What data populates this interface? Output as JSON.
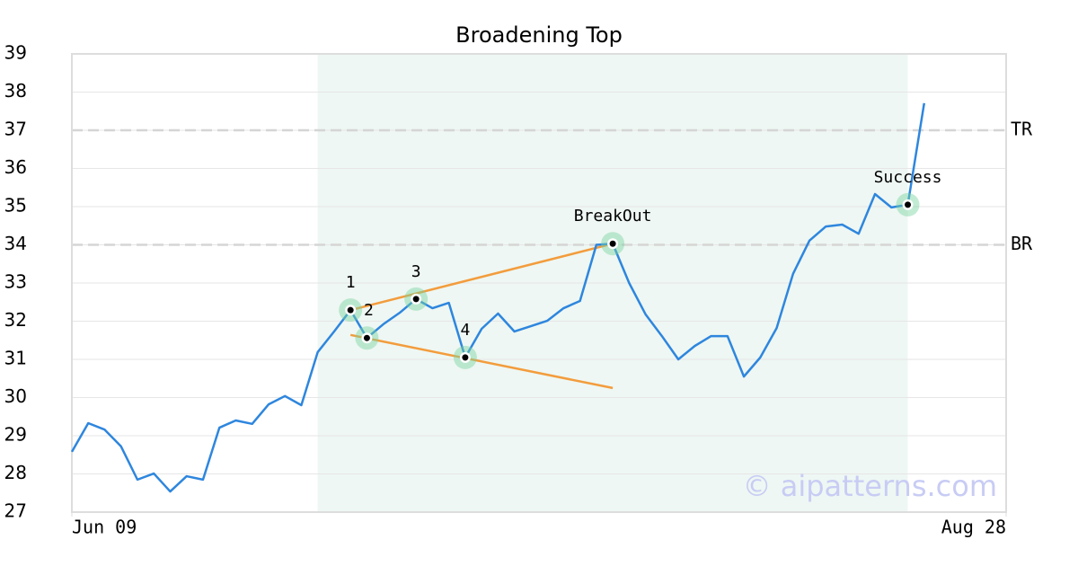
{
  "chart_data": {
    "type": "line",
    "title": "Broadening Top",
    "x": [
      0,
      1,
      2,
      3,
      4,
      5,
      6,
      7,
      8,
      9,
      10,
      11,
      12,
      13,
      14,
      15,
      16,
      17,
      18,
      19,
      20,
      21,
      22,
      23,
      24,
      25,
      26,
      27,
      28,
      29,
      30,
      31,
      32,
      33,
      34,
      35,
      36,
      37,
      38,
      39,
      40,
      41,
      42,
      43,
      44,
      45,
      46,
      47,
      48,
      49,
      50,
      51,
      52
    ],
    "series": [
      {
        "color": "#2e86de",
        "values": [
          28.58,
          29.33,
          29.16,
          28.72,
          27.85,
          28.01,
          27.54,
          27.94,
          27.85,
          29.21,
          29.4,
          29.31,
          29.82,
          30.04,
          29.8,
          31.19,
          31.73,
          32.29,
          31.56,
          31.92,
          32.22,
          32.58,
          32.34,
          32.48,
          31.05,
          31.8,
          32.2,
          31.73,
          31.87,
          32.01,
          32.34,
          32.53,
          34.0,
          34.03,
          33.0,
          32.18,
          31.61,
          31.0,
          31.35,
          31.61,
          31.61,
          30.55,
          31.05,
          31.82,
          33.24,
          34.11,
          34.48,
          34.53,
          34.29,
          35.33,
          34.98,
          35.05,
          37.71
        ]
      }
    ],
    "xlim": [
      0,
      57
    ],
    "xticks": [
      {
        "value": 0,
        "label": "Jun 09"
      },
      {
        "value": 57,
        "label": "Aug 28"
      }
    ],
    "ylim": [
      27,
      39
    ],
    "yticks": [
      27,
      28,
      29,
      30,
      31,
      32,
      33,
      34,
      35,
      36,
      37,
      38,
      39
    ],
    "grid": true,
    "shaded_region": {
      "x": [
        15,
        51
      ],
      "color": "#eef7f3"
    },
    "hlines": [
      {
        "value": 37,
        "label": "TR"
      },
      {
        "value": 34,
        "label": "BR"
      }
    ],
    "trendlines": [
      {
        "color": "#f39c3c",
        "x": [
          17,
          33
        ],
        "y": [
          32.29,
          34.03
        ]
      },
      {
        "color": "#f39c3c",
        "x": [
          17,
          33
        ],
        "y": [
          31.64,
          30.25
        ]
      }
    ],
    "markers": [
      {
        "label": "1",
        "x": 17,
        "y": 32.29
      },
      {
        "label": "2",
        "x": 18,
        "y": 31.56
      },
      {
        "label": "3",
        "x": 21,
        "y": 32.58
      },
      {
        "label": "4",
        "x": 24,
        "y": 31.05
      },
      {
        "label": "BreakOut",
        "x": 33,
        "y": 34.03
      },
      {
        "label": "Success",
        "x": 51,
        "y": 35.05
      }
    ],
    "watermark": "© aipatterns.com"
  }
}
